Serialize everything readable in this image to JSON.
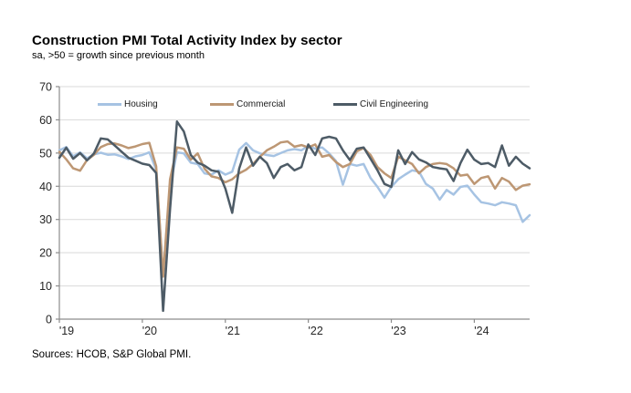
{
  "chart_data": {
    "type": "line",
    "title": "Construction PMI Total Activity Index by sector",
    "subtitle": "sa, >50 = growth since previous month",
    "sources": "Sources: HCOB, S&P Global PMI.",
    "ylim": [
      0,
      70
    ],
    "yticks": [
      0,
      10,
      20,
      30,
      40,
      50,
      60,
      70
    ],
    "xtick_labels": [
      "'19",
      "'20",
      "'21",
      "'22",
      "'23",
      "'24"
    ],
    "x_range": [
      "Jan 2019",
      "Sep 2024"
    ],
    "x_frequency": "monthly",
    "grid": "horizontal",
    "legend_position": "top-inside",
    "axis_color": "#8c8c8c",
    "gridline_color": "#d9d9d9",
    "tick_label_color": "#262626",
    "series": [
      {
        "name": "Housing",
        "color": "#a6c3e3",
        "values": [
          50.8,
          51.8,
          49.0,
          50.2,
          48.4,
          49.6,
          50.1,
          49.5,
          49.6,
          49.0,
          48.2,
          49.0,
          49.4,
          50.2,
          45.0,
          13.0,
          40.0,
          50.2,
          49.9,
          47.1,
          46.7,
          43.9,
          43.5,
          44.8,
          43.5,
          44.4,
          51.0,
          53.0,
          50.8,
          49.9,
          49.4,
          49.1,
          50.0,
          50.8,
          51.2,
          50.8,
          52.2,
          51.3,
          51.7,
          49.9,
          47.6,
          40.5,
          46.7,
          46.2,
          46.7,
          42.5,
          39.8,
          36.6,
          39.8,
          42.1,
          43.5,
          44.8,
          44.4,
          40.7,
          39.3,
          36.0,
          38.9,
          37.5,
          39.8,
          40.2,
          37.5,
          35.2,
          34.8,
          34.3,
          35.2,
          34.8,
          34.3,
          29.3,
          31.3
        ]
      },
      {
        "name": "Commercial",
        "color": "#bd9774",
        "values": [
          50.4,
          48.1,
          45.4,
          44.7,
          47.9,
          49.5,
          51.8,
          52.7,
          52.9,
          52.3,
          51.5,
          52.0,
          52.7,
          53.1,
          46.0,
          12.8,
          42.1,
          51.7,
          51.3,
          48.0,
          49.9,
          45.3,
          43.0,
          42.5,
          41.2,
          42.1,
          43.9,
          45.0,
          46.7,
          48.9,
          50.8,
          51.9,
          53.2,
          53.5,
          51.9,
          52.4,
          51.7,
          52.6,
          48.9,
          49.4,
          47.3,
          45.8,
          46.7,
          50.5,
          51.5,
          49.4,
          45.8,
          43.9,
          42.5,
          48.9,
          47.8,
          46.7,
          43.9,
          45.8,
          46.7,
          47.0,
          46.7,
          45.4,
          43.2,
          43.5,
          40.7,
          42.5,
          43.0,
          39.3,
          42.5,
          41.4,
          38.9,
          40.2,
          40.6
        ]
      },
      {
        "name": "Civil Engineering",
        "color": "#4d5b66",
        "values": [
          48.6,
          51.6,
          48.3,
          50.0,
          47.8,
          49.9,
          54.4,
          54.1,
          52.3,
          50.4,
          48.6,
          47.7,
          46.8,
          46.4,
          44.0,
          2.5,
          33.0,
          59.5,
          56.5,
          49.4,
          47.1,
          46.2,
          44.8,
          44.4,
          39.3,
          32.0,
          45.3,
          51.7,
          46.2,
          48.9,
          47.0,
          42.5,
          45.8,
          46.7,
          44.8,
          45.8,
          52.6,
          49.4,
          54.4,
          54.9,
          54.4,
          50.8,
          47.9,
          51.3,
          51.7,
          48.3,
          44.8,
          40.7,
          39.8,
          50.8,
          46.7,
          50.3,
          48.1,
          47.2,
          45.8,
          45.4,
          45.1,
          41.6,
          47.0,
          51.0,
          48.0,
          46.7,
          47.0,
          45.8,
          52.3,
          46.2,
          48.9,
          46.8,
          45.4
        ]
      }
    ]
  }
}
